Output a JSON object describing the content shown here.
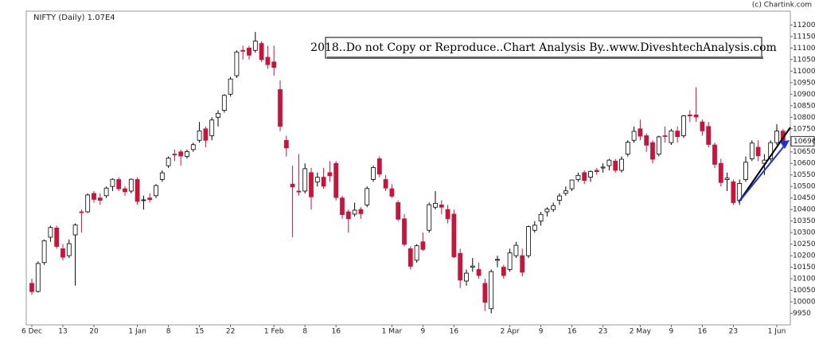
{
  "chart_data": {
    "type": "candlestick",
    "title": "NIFTY (Daily) 1.07E4",
    "source": "(c) Chartink.com",
    "annotation": "2018..Do not Copy or Reproduce..Chart Analysis By..www.DiveshtechAnalysis.com",
    "up_color": "#ffffff",
    "down_color": "#c8153c",
    "ylim": [
      9900,
      11260
    ],
    "yticks": [
      9950,
      10000,
      10050,
      10100,
      10150,
      10200,
      10250,
      10300,
      10350,
      10400,
      10450,
      10500,
      10550,
      10600,
      10650,
      10700,
      10750,
      10800,
      10850,
      10900,
      10950,
      11000,
      11050,
      11100,
      11150,
      11200
    ],
    "last_price": 10696,
    "categories": [
      "6 Dec",
      null,
      null,
      null,
      null,
      "13",
      null,
      null,
      null,
      null,
      "20",
      null,
      null,
      null,
      null,
      null,
      null,
      "1 Jan",
      null,
      null,
      null,
      null,
      "8",
      null,
      null,
      null,
      null,
      "15",
      null,
      null,
      null,
      null,
      "22",
      null,
      null,
      null,
      null,
      null,
      null,
      "1 Feb",
      null,
      null,
      null,
      null,
      "8",
      null,
      null,
      null,
      null,
      "16",
      null,
      null,
      null,
      null,
      null,
      null,
      null,
      null,
      "1 Mar",
      null,
      null,
      null,
      null,
      "9",
      null,
      null,
      null,
      null,
      "16",
      null,
      null,
      null,
      null,
      null,
      null,
      null,
      null,
      "2 Apr",
      null,
      null,
      null,
      null,
      "9",
      null,
      null,
      null,
      null,
      "16",
      null,
      null,
      null,
      null,
      "23",
      null,
      null,
      null,
      null,
      null,
      "2 May",
      null,
      null,
      null,
      null,
      "9",
      null,
      null,
      null,
      null,
      "16",
      null,
      null,
      null,
      null,
      "23",
      null,
      null,
      null,
      null,
      null,
      null,
      "1 Jun",
      null
    ],
    "ohlc": [
      [
        10080,
        10100,
        10030,
        10044
      ],
      [
        10045,
        10175,
        10040,
        10166
      ],
      [
        10170,
        10270,
        10160,
        10265
      ],
      [
        10280,
        10330,
        10260,
        10322
      ],
      [
        10320,
        10330,
        10230,
        10240
      ],
      [
        10230,
        10250,
        10180,
        10193
      ],
      [
        10200,
        10270,
        10190,
        10252
      ],
      [
        10290,
        10340,
        10070,
        10333
      ],
      [
        10390,
        10400,
        10300,
        10388
      ],
      [
        10390,
        10470,
        10385,
        10463
      ],
      [
        10470,
        10480,
        10430,
        10444
      ],
      [
        10450,
        10470,
        10420,
        10440
      ],
      [
        10460,
        10500,
        10450,
        10493
      ],
      [
        10500,
        10535,
        10480,
        10531
      ],
      [
        10530,
        10540,
        10480,
        10490
      ],
      [
        10490,
        10500,
        10460,
        10477
      ],
      [
        10480,
        10535,
        10470,
        10531
      ],
      [
        10530,
        10540,
        10420,
        10435
      ],
      [
        10440,
        10460,
        10400,
        10442
      ],
      [
        10450,
        10470,
        10430,
        10443
      ],
      [
        10460,
        10510,
        10450,
        10504
      ],
      [
        10530,
        10570,
        10520,
        10559
      ],
      [
        10590,
        10630,
        10580,
        10623
      ],
      [
        10640,
        10660,
        10610,
        10637
      ],
      [
        10650,
        10660,
        10590,
        10632
      ],
      [
        10630,
        10660,
        10620,
        10651
      ],
      [
        10660,
        10690,
        10650,
        10681
      ],
      [
        10700,
        10780,
        10690,
        10741
      ],
      [
        10750,
        10760,
        10670,
        10700
      ],
      [
        10720,
        10800,
        10700,
        10788
      ],
      [
        10800,
        10830,
        10760,
        10817
      ],
      [
        10830,
        10900,
        10820,
        10895
      ],
      [
        10900,
        10975,
        10890,
        10966
      ],
      [
        10980,
        11090,
        10970,
        11083
      ],
      [
        11090,
        11110,
        11050,
        11086
      ],
      [
        11100,
        11110,
        11050,
        11069
      ],
      [
        11090,
        11170,
        11080,
        11130
      ],
      [
        11120,
        11130,
        11040,
        11050
      ],
      [
        11060,
        11110,
        11010,
        11028
      ],
      [
        11040,
        11110,
        10980,
        11016
      ],
      [
        10920,
        10960,
        10740,
        10761
      ],
      [
        10700,
        10720,
        10630,
        10667
      ],
      [
        10510,
        10590,
        10280,
        10498
      ],
      [
        10480,
        10640,
        10460,
        10476
      ],
      [
        10480,
        10600,
        10470,
        10577
      ],
      [
        10560,
        10580,
        10400,
        10455
      ],
      [
        10520,
        10560,
        10500,
        10540
      ],
      [
        10540,
        10580,
        10490,
        10501
      ],
      [
        10560,
        10610,
        10520,
        10546
      ],
      [
        10600,
        10610,
        10440,
        10452
      ],
      [
        10450,
        10460,
        10360,
        10378
      ],
      [
        10390,
        10400,
        10300,
        10360
      ],
      [
        10380,
        10430,
        10370,
        10397
      ],
      [
        10400,
        10410,
        10360,
        10382
      ],
      [
        10420,
        10500,
        10410,
        10491
      ],
      [
        10530,
        10590,
        10520,
        10582
      ],
      [
        10620,
        10630,
        10540,
        10554
      ],
      [
        10530,
        10550,
        10480,
        10493
      ],
      [
        10490,
        10510,
        10450,
        10458
      ],
      [
        10430,
        10440,
        10350,
        10358
      ],
      [
        10360,
        10380,
        10240,
        10249
      ],
      [
        10230,
        10240,
        10140,
        10154
      ],
      [
        10180,
        10250,
        10170,
        10243
      ],
      [
        10260,
        10300,
        10220,
        10227
      ],
      [
        10310,
        10430,
        10300,
        10421
      ],
      [
        10410,
        10480,
        10400,
        10427
      ],
      [
        10420,
        10440,
        10380,
        10410
      ],
      [
        10400,
        10420,
        10340,
        10360
      ],
      [
        10380,
        10400,
        10190,
        10195
      ],
      [
        10210,
        10230,
        10060,
        10094
      ],
      [
        10090,
        10140,
        10070,
        10124
      ],
      [
        10150,
        10190,
        10130,
        10155
      ],
      [
        10140,
        10170,
        10100,
        10114
      ],
      [
        10080,
        10100,
        9960,
        9998
      ],
      [
        9970,
        10140,
        9950,
        10131
      ],
      [
        10180,
        10200,
        10150,
        10184
      ],
      [
        10150,
        10160,
        10100,
        10114
      ],
      [
        10140,
        10230,
        10130,
        10212
      ],
      [
        10200,
        10260,
        10190,
        10245
      ],
      [
        10200,
        10230,
        10110,
        10128
      ],
      [
        10200,
        10330,
        10190,
        10326
      ],
      [
        10310,
        10350,
        10300,
        10332
      ],
      [
        10350,
        10390,
        10330,
        10379
      ],
      [
        10390,
        10410,
        10370,
        10402
      ],
      [
        10400,
        10430,
        10390,
        10417
      ],
      [
        10440,
        10470,
        10420,
        10459
      ],
      [
        10470,
        10500,
        10460,
        10481
      ],
      [
        10490,
        10530,
        10480,
        10528
      ],
      [
        10530,
        10560,
        10520,
        10548
      ],
      [
        10560,
        10570,
        10510,
        10526
      ],
      [
        10540,
        10570,
        10520,
        10565
      ],
      [
        10570,
        10580,
        10550,
        10564
      ],
      [
        10580,
        10600,
        10560,
        10584
      ],
      [
        10590,
        10620,
        10570,
        10614
      ],
      [
        10610,
        10620,
        10560,
        10570
      ],
      [
        10570,
        10630,
        10560,
        10618
      ],
      [
        10640,
        10700,
        10630,
        10692
      ],
      [
        10700,
        10760,
        10690,
        10739
      ],
      [
        10750,
        10790,
        10700,
        10718
      ],
      [
        10720,
        10730,
        10650,
        10679
      ],
      [
        10690,
        10700,
        10600,
        10618
      ],
      [
        10640,
        10720,
        10630,
        10715
      ],
      [
        10720,
        10760,
        10690,
        10717
      ],
      [
        10690,
        10750,
        10680,
        10741
      ],
      [
        10740,
        10760,
        10690,
        10716
      ],
      [
        10720,
        10810,
        10710,
        10806
      ],
      [
        10810,
        10830,
        10780,
        10806
      ],
      [
        10810,
        10930,
        10780,
        10801
      ],
      [
        10780,
        10790,
        10720,
        10741
      ],
      [
        10760,
        10780,
        10670,
        10682
      ],
      [
        10680,
        10690,
        10580,
        10596
      ],
      [
        10600,
        10620,
        10500,
        10517
      ],
      [
        10530,
        10560,
        10480,
        10536
      ],
      [
        10520,
        10530,
        10420,
        10430
      ],
      [
        10440,
        10530,
        10420,
        10513
      ],
      [
        10530,
        10630,
        10520,
        10605
      ],
      [
        10620,
        10700,
        10610,
        10688
      ],
      [
        10670,
        10700,
        10610,
        10633
      ],
      [
        10600,
        10640,
        10550,
        10614
      ],
      [
        10620,
        10700,
        10610,
        10690
      ],
      [
        10690,
        10770,
        10680,
        10740
      ],
      [
        10740,
        10750,
        10680,
        10696
      ]
    ]
  }
}
